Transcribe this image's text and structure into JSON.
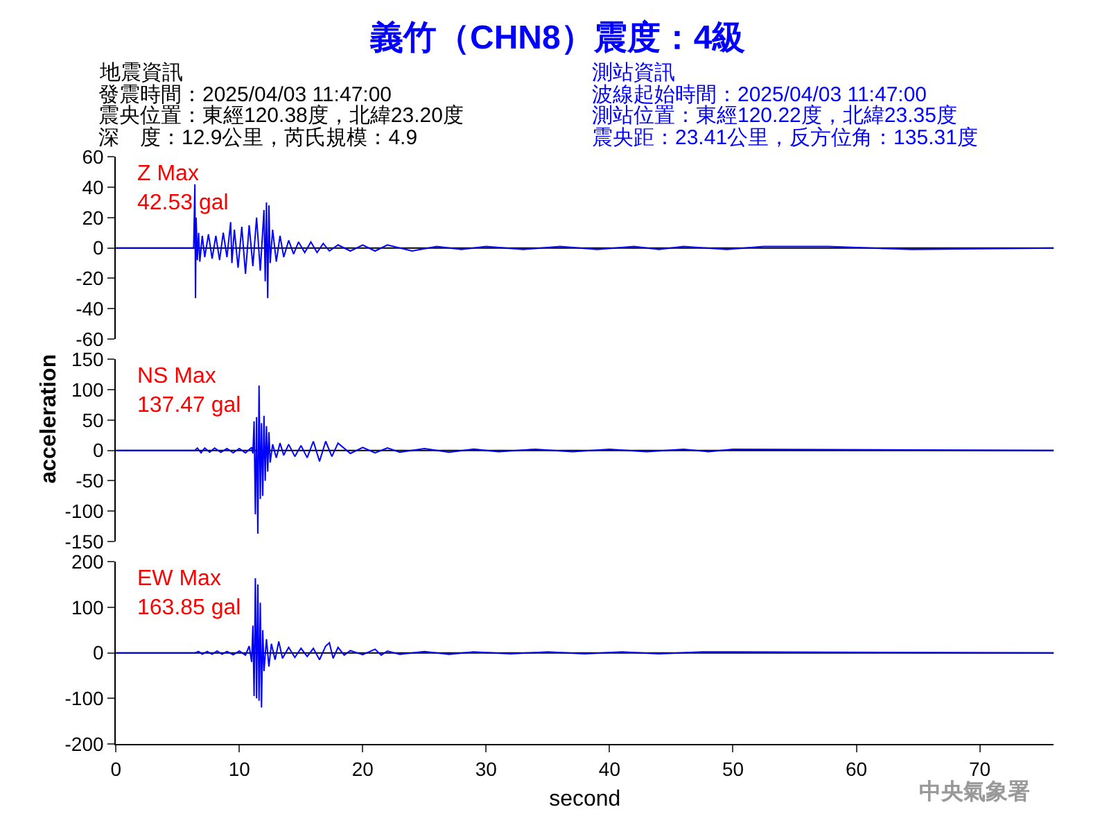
{
  "chart_data": [
    {
      "type": "line",
      "title": "義竹（CHN8）震度：4級",
      "annotations": [
        "地震資訊",
        "發震時間：2025/04/03 11:47:00",
        "震央位置：東經120.38度，北緯23.20度",
        "深　度：12.9公里，芮氏規模：4.9",
        "測站資訊",
        "波線起始時間：2025/04/03 11:47:00",
        "測站位置：東經120.22度，北緯23.35度",
        "震央距：23.41公里，反方位角：135.31度",
        "Z Max\n42.53 gal"
      ],
      "series": [
        {
          "color": "#0000ff",
          "x": [
            0,
            6.3,
            6.4,
            6.45,
            6.5,
            6.6,
            6.7,
            6.8,
            7.0,
            7.2,
            7.5,
            7.8,
            8.1,
            8.4,
            8.7,
            9.0,
            9.3,
            9.4,
            9.6,
            9.9,
            10.2,
            10.5,
            10.8,
            11.1,
            11.4,
            11.7,
            12.0,
            12.1,
            12.2,
            12.3,
            12.4,
            12.5,
            12.7,
            13.0,
            13.3,
            13.6,
            14.0,
            14.4,
            14.8,
            15.3,
            15.8,
            16.3,
            16.8,
            17.3,
            18,
            19,
            20,
            21,
            22,
            24,
            26,
            28,
            30,
            33,
            36,
            39,
            42,
            44,
            46,
            49.5,
            52.5,
            57.7,
            64.5,
            76
          ],
          "values": [
            0,
            0,
            42,
            -33,
            20,
            -8,
            10,
            -9,
            8,
            -6,
            9,
            -7,
            8,
            -8,
            10,
            -6,
            17,
            -10,
            12,
            -13,
            14,
            -17,
            15,
            -12,
            20,
            -15,
            25,
            -22,
            30,
            -33,
            28,
            -10,
            12,
            -9,
            8,
            -6,
            5,
            -4,
            4,
            -3,
            4,
            -3,
            3,
            -2,
            2,
            -2,
            2,
            -2,
            2,
            -2,
            1,
            -1,
            1,
            -1,
            1,
            -1,
            1,
            -1,
            1,
            -1,
            1,
            1,
            -1,
            0
          ]
        }
      ],
      "xlim": [
        0,
        76
      ],
      "ylim": [
        -60,
        60
      ],
      "yticks": [
        -60,
        -40,
        -20,
        0,
        20,
        40,
        60
      ],
      "tick_labels": "y",
      "ref_lines": [
        {
          "axis": "y",
          "value": 0,
          "color": "#000000"
        }
      ]
    },
    {
      "type": "line",
      "ylabel": "acceleration",
      "annotations": [
        "NS Max\n137.47 gal"
      ],
      "series": [
        {
          "color": "#0000ff",
          "x": [
            0,
            6.4,
            6.6,
            6.9,
            7.2,
            7.6,
            8.0,
            8.5,
            9.0,
            9.5,
            10.0,
            10.5,
            11.0,
            11.1,
            11.2,
            11.3,
            11.4,
            11.5,
            11.6,
            11.7,
            11.8,
            11.9,
            12.0,
            12.1,
            12.2,
            12.3,
            12.4,
            12.5,
            12.7,
            13.0,
            13.3,
            13.6,
            14.0,
            14.5,
            15.0,
            15.5,
            16.0,
            16.5,
            17.0,
            17.5,
            18.0,
            19,
            20,
            21,
            22,
            23,
            25,
            27,
            29,
            31,
            34,
            37,
            40,
            43,
            46,
            48,
            50,
            76
          ],
          "values": [
            0,
            0,
            4,
            -4,
            4,
            -3,
            4,
            -3,
            3,
            -4,
            3,
            -4,
            5,
            -5,
            48,
            -105,
            55,
            -137,
            107,
            -80,
            45,
            -75,
            57,
            -50,
            40,
            -35,
            30,
            -20,
            10,
            -12,
            12,
            -8,
            10,
            -10,
            8,
            -12,
            15,
            -18,
            15,
            -10,
            12,
            -5,
            5,
            -4,
            4,
            -3,
            3,
            -3,
            2,
            -2,
            2,
            -2,
            2,
            -2,
            2,
            -2,
            2,
            0
          ]
        }
      ],
      "xlim": [
        0,
        76
      ],
      "ylim": [
        -150,
        150
      ],
      "yticks": [
        -150,
        -100,
        -50,
        0,
        50,
        100,
        150
      ],
      "tick_labels": "y",
      "ref_lines": [
        {
          "axis": "y",
          "value": 0,
          "color": "#000000"
        }
      ]
    },
    {
      "type": "line",
      "xlabel": "second",
      "annotations": [
        "EW Max\n163.85 gal",
        "中央氣象署"
      ],
      "series": [
        {
          "color": "#0000ff",
          "x": [
            0,
            6.4,
            6.7,
            7.0,
            7.4,
            7.8,
            8.2,
            8.6,
            9.0,
            9.5,
            10.0,
            10.5,
            10.8,
            11.0,
            11.1,
            11.2,
            11.3,
            11.4,
            11.5,
            11.6,
            11.7,
            11.8,
            11.9,
            12.0,
            12.2,
            12.4,
            12.6,
            12.9,
            13.2,
            13.5,
            14.0,
            14.5,
            15.0,
            15.5,
            16.0,
            16.5,
            17.0,
            17.3,
            17.6,
            18.0,
            18.5,
            19,
            20,
            21,
            21.5,
            22,
            23,
            25,
            27,
            29,
            32,
            35,
            38,
            41,
            44,
            47.5,
            50,
            76
          ],
          "values": [
            0,
            0,
            3,
            -3,
            3,
            -3,
            4,
            -3,
            3,
            -4,
            4,
            -5,
            15,
            -20,
            60,
            -95,
            164,
            -100,
            150,
            -105,
            110,
            -120,
            50,
            -40,
            30,
            -30,
            20,
            -15,
            25,
            -12,
            12,
            -10,
            10,
            -8,
            10,
            -15,
            15,
            22,
            -12,
            12,
            -5,
            5,
            -4,
            8,
            -5,
            4,
            -3,
            3,
            -3,
            2,
            -2,
            2,
            -2,
            2,
            -2,
            2,
            2,
            0
          ]
        }
      ],
      "xlim": [
        0,
        76
      ],
      "xticks": [
        0,
        10,
        20,
        30,
        40,
        50,
        60,
        70
      ],
      "ylim": [
        -200,
        200
      ],
      "yticks": [
        -200,
        -100,
        0,
        100,
        200
      ],
      "ref_lines": [
        {
          "axis": "y",
          "value": 0,
          "color": "#000000"
        }
      ]
    }
  ]
}
